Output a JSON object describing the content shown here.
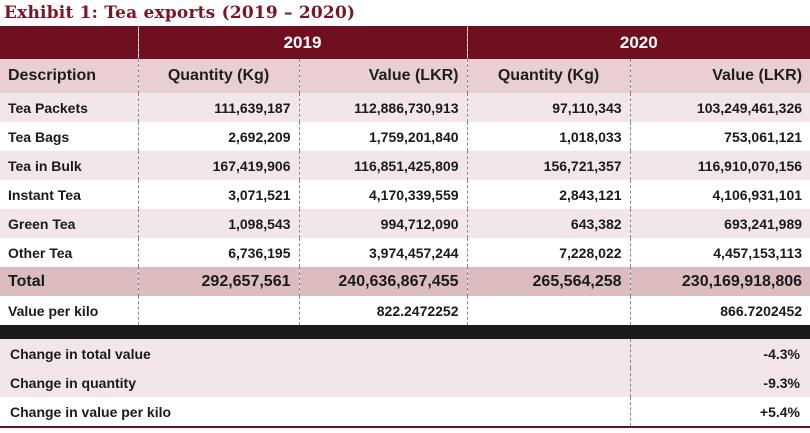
{
  "title": "Exhibit 1: Tea exports (2019 – 2020)",
  "years": [
    "2019",
    "2020"
  ],
  "columns": {
    "description": "Description",
    "quantity": "Quantity (Kg)",
    "value": "Value (LKR)"
  },
  "rows": [
    {
      "description": "Tea Packets",
      "q2019": "111,639,187",
      "v2019": "112,886,730,913",
      "q2020": "97,110,343",
      "v2020": "103,249,461,326"
    },
    {
      "description": "Tea Bags",
      "q2019": "2,692,209",
      "v2019": "1,759,201,840",
      "q2020": "1,018,033",
      "v2020": "753,061,121"
    },
    {
      "description": "Tea in Bulk",
      "q2019": "167,419,906",
      "v2019": "116,851,425,809",
      "q2020": "156,721,357",
      "v2020": "116,910,070,156"
    },
    {
      "description": "Instant Tea",
      "q2019": "3,071,521",
      "v2019": "4,170,339,559",
      "q2020": "2,843,121",
      "v2020": "4,106,931,101"
    },
    {
      "description": "Green Tea",
      "q2019": "1,098,543",
      "v2019": "994,712,090",
      "q2020": "643,382",
      "v2020": "693,241,989"
    },
    {
      "description": "Other Tea",
      "q2019": "6,736,195",
      "v2019": "3,974,457,244",
      "q2020": "7,228,022",
      "v2020": "4,457,153,113"
    }
  ],
  "total": {
    "description": "Total",
    "q2019": "292,657,561",
    "v2019": "240,636,867,455",
    "q2020": "265,564,258",
    "v2020": "230,169,918,806"
  },
  "value_per_kilo": {
    "description": "Value per kilo",
    "v2019": "822.2472252",
    "v2020": "866.7202452"
  },
  "changes": [
    {
      "label": "Change in total value",
      "value": "-4.3%"
    },
    {
      "label": "Change in quantity",
      "value": "-9.3%"
    },
    {
      "label": "Change in value per kilo",
      "value": "+5.4%"
    }
  ],
  "colors": {
    "header_maroon": "#6e1020",
    "title_maroon": "#7a1526",
    "header_pink": "#e9cfd2",
    "row_alt": "#f3e6e8",
    "total_row": "#dcbcbf"
  }
}
